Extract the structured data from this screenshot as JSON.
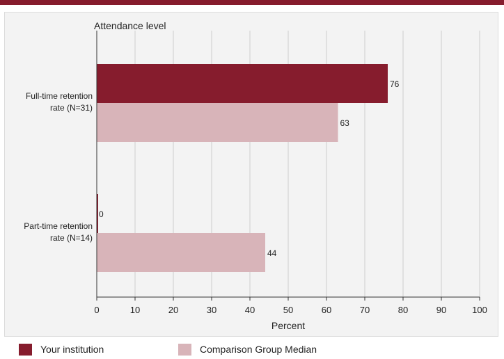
{
  "colors": {
    "brand": "#861c2d",
    "comparison": "#d8b4b9",
    "grid": "#cccccc",
    "axis": "#333333"
  },
  "chart_data": {
    "type": "bar",
    "orientation": "horizontal",
    "title": "Attendance level",
    "xlabel": "Percent",
    "ylabel": "",
    "xlim": [
      0,
      100
    ],
    "xticks": [
      0,
      10,
      20,
      30,
      40,
      50,
      60,
      70,
      80,
      90,
      100
    ],
    "grid": true,
    "legend_position": "bottom",
    "categories": [
      [
        "Full-time retention",
        "rate (N=31)"
      ],
      [
        "Part-time retention",
        "rate (N=14)"
      ]
    ],
    "series": [
      {
        "name": "Your institution",
        "values": [
          76,
          0
        ],
        "color": "#861c2d"
      },
      {
        "name": "Comparison Group Median",
        "values": [
          63,
          44
        ],
        "color": "#d8b4b9"
      }
    ]
  }
}
